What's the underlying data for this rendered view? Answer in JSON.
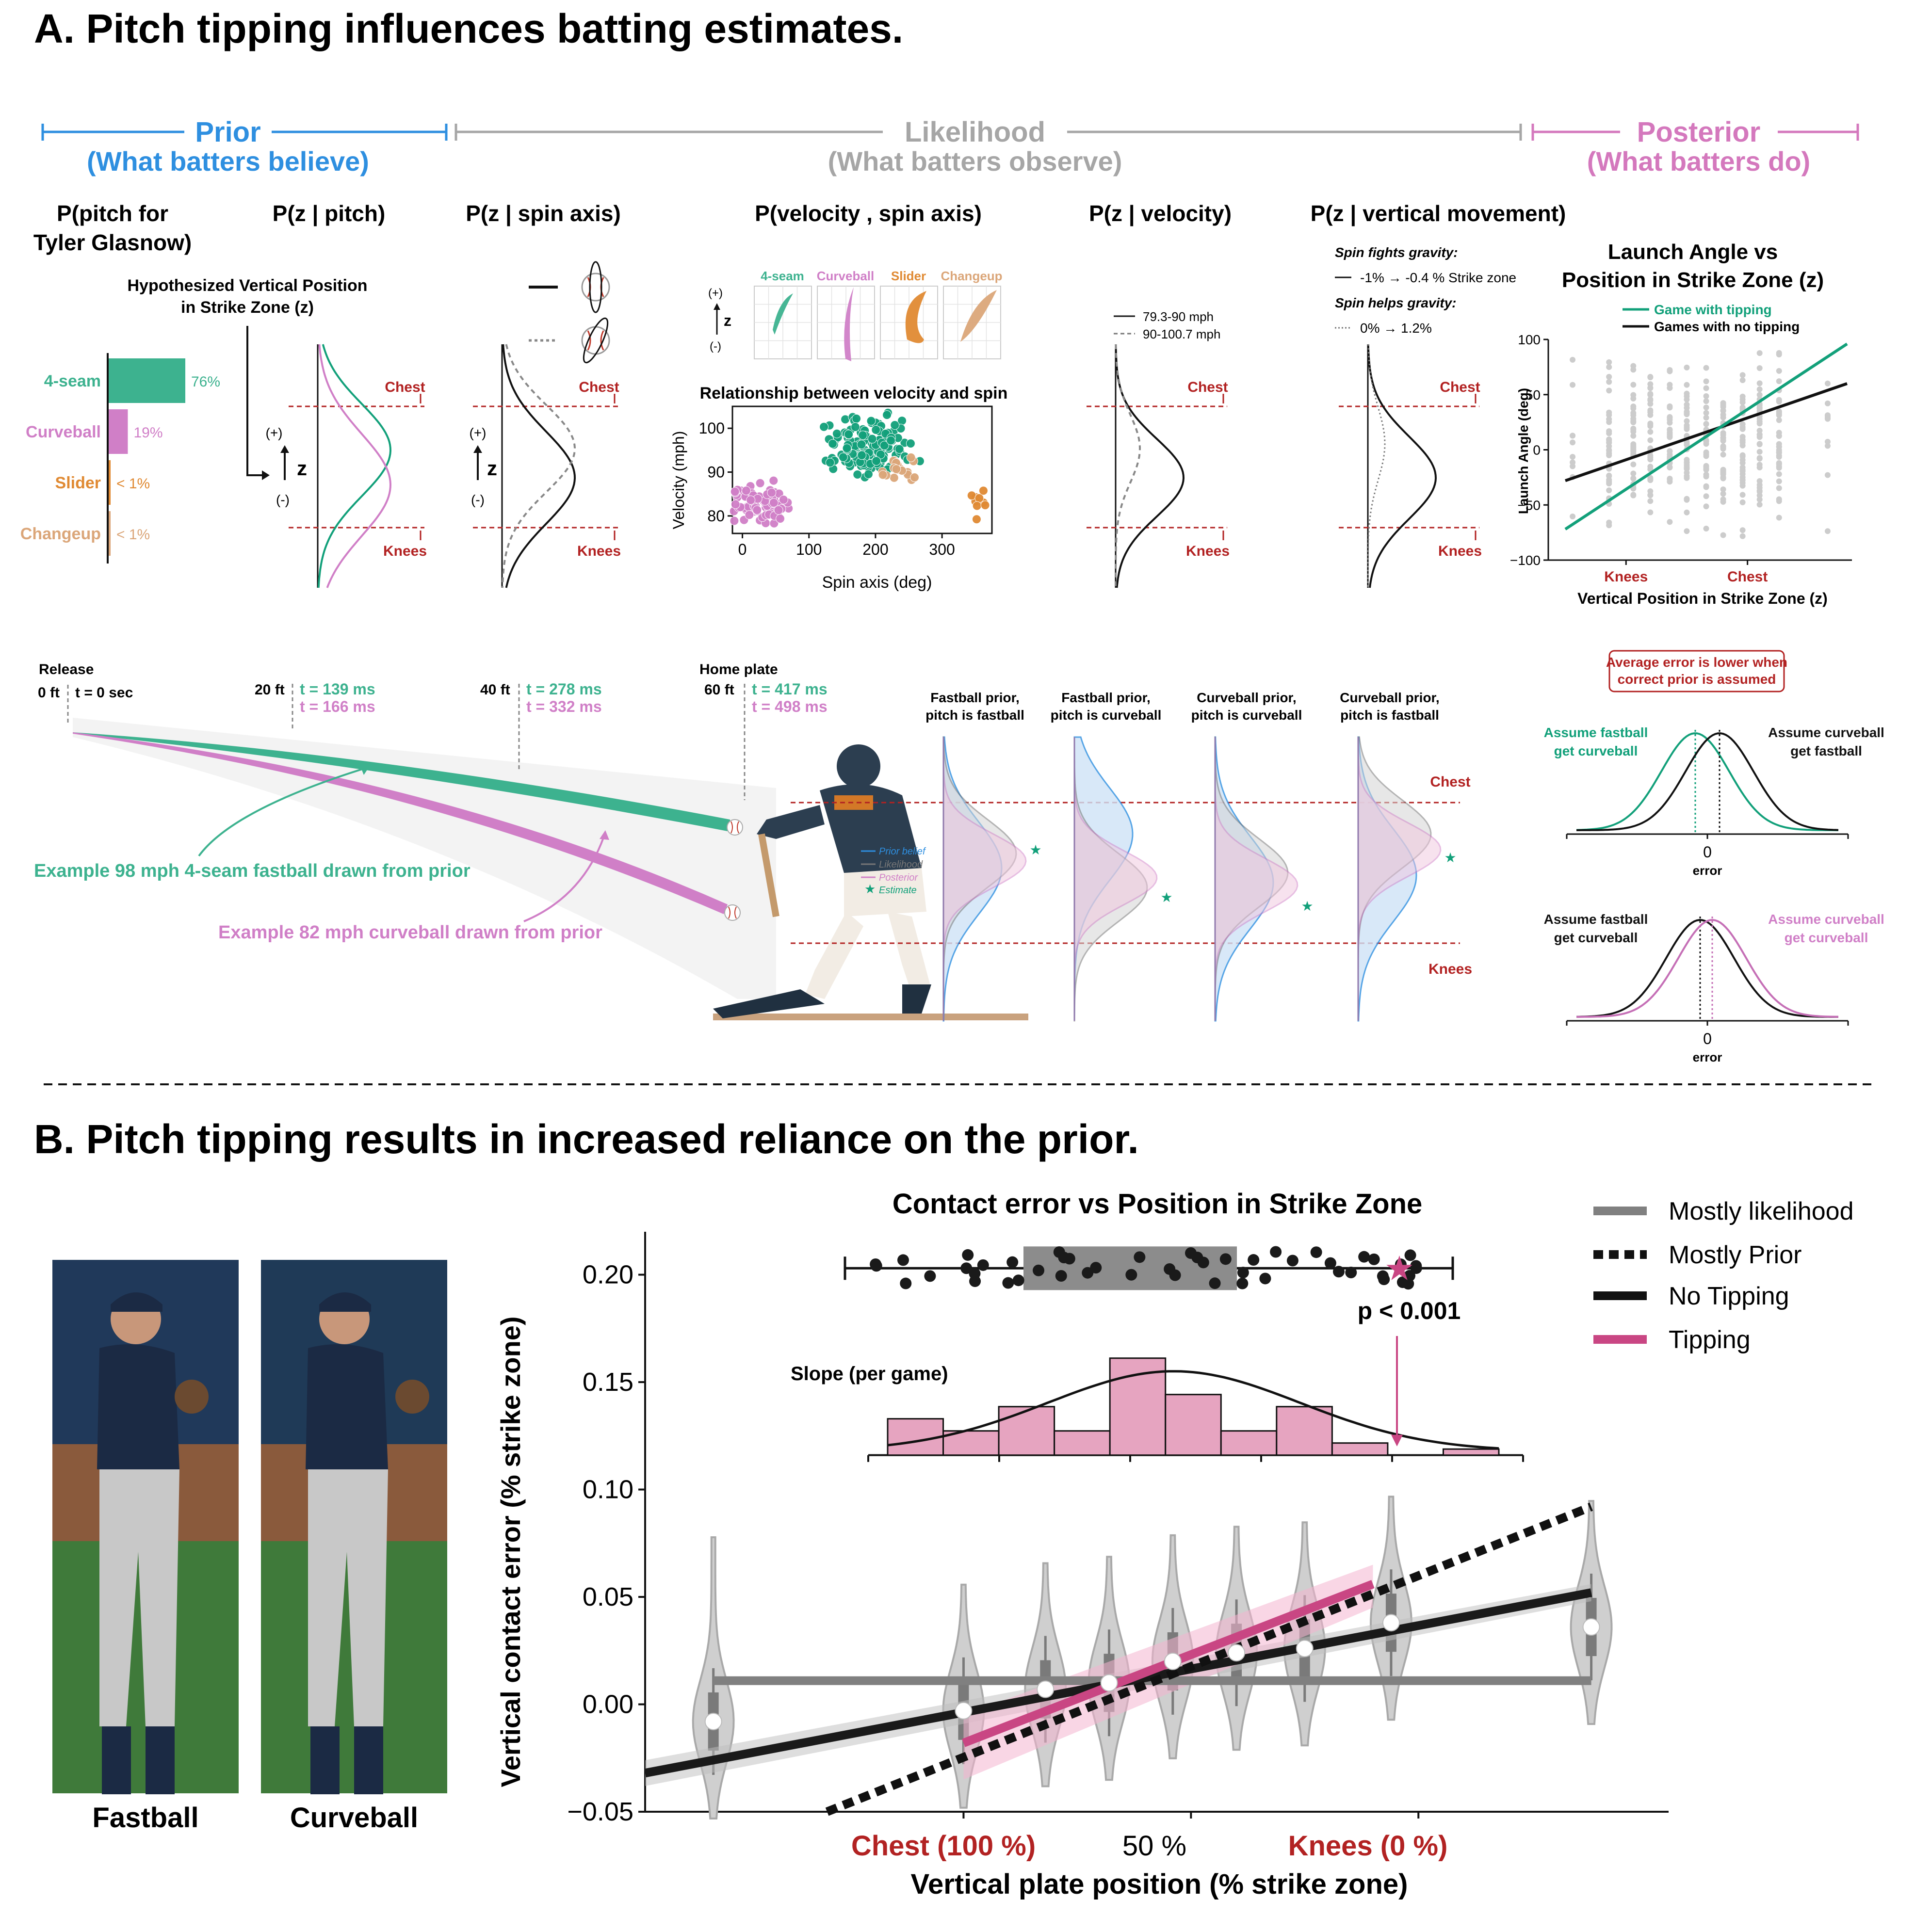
{
  "colors": {
    "prior": "#2e8fe0",
    "likelihood": "#a6a6a6",
    "posterior": "#d478bd",
    "fourseam": "#3db28f",
    "curveball": "#d07fc7",
    "slider": "#e08a33",
    "changeup": "#dba679",
    "knees_chest": "#b22222",
    "tipping": "#c94683",
    "hist_fill": "#e6a4c0",
    "grey": "#c8c8c8"
  },
  "panel_a": {
    "title": "A. Pitch tipping influences batting estimates.",
    "sections": {
      "prior": {
        "title": "Prior",
        "sub": "(What batters believe)"
      },
      "likelihood": {
        "title": "Likelihood",
        "sub": "(What batters observe)"
      },
      "posterior": {
        "title": "Posterior",
        "sub": "(What batters do)"
      }
    },
    "col_titles": {
      "c1_line1": "P(pitch for",
      "c1_line2": "Tyler Glasnow)",
      "c2": "P(z | pitch)",
      "c3": "P(z | spin axis)",
      "c4": "P(velocity , spin axis)",
      "c5": "P(z | velocity)",
      "c6": "P(z | vertical movement)"
    },
    "hypo_line1": "Hypothesized Vertical Position",
    "hypo_line2": "in Strike Zone (z)",
    "axis_z": "z",
    "axis_plus": "(+)",
    "axis_minus": "(-)",
    "chest": "Chest",
    "knees": "Knees",
    "prior_bars": [
      {
        "label": "4-seam",
        "value_text": "76%",
        "value": 76,
        "color": "#3db28f"
      },
      {
        "label": "Curveball",
        "value_text": "19%",
        "value": 19,
        "color": "#d07fc7"
      },
      {
        "label": "Slider",
        "value_text": "< 1%",
        "value": 1,
        "color": "#e08a33"
      },
      {
        "label": "Changeup",
        "value_text": "< 1%",
        "value": 1,
        "color": "#dba679"
      }
    ],
    "pitch_boxes": [
      "4-seam",
      "Curveball",
      "Slider",
      "Changeup"
    ],
    "scatter": {
      "title": "Relationship between velocity and spin",
      "xlabel": "Spin axis (deg)",
      "ylabel": "Velocity (mph)",
      "xticks": [
        "0",
        "100",
        "200",
        "300"
      ],
      "yticks": [
        "80",
        "90",
        "100"
      ]
    },
    "velocity_legend": [
      "79.3-90 mph",
      "90-100.7 mph"
    ],
    "vm_legend": {
      "fights": "Spin fights gravity:",
      "fights_val": "-1% → -0.4 % Strike zone",
      "helps": "Spin helps gravity:",
      "helps_val": "0% → 1.2%"
    },
    "launch": {
      "title_line1": "Launch Angle vs",
      "title_line2": "Position in Strike Zone (z)",
      "legend_tipping": "Game with tipping",
      "legend_notipping": "Games with no tipping",
      "ylabel": "Launch Angle (deg)",
      "xlabel": "Vertical Position in Strike Zone (z)",
      "yticks": [
        "100",
        "50",
        "0",
        "−50",
        "−100"
      ],
      "xticks": [
        "Knees",
        "Chest"
      ]
    },
    "trajectory": {
      "release": "Release",
      "ft0": "0 ft",
      "t0": "t = 0 sec",
      "ft20": "20 ft",
      "t20a": "t = 139 ms",
      "t20b": "t = 166 ms",
      "ft40": "40 ft",
      "t40a": "t = 278 ms",
      "t40b": "t = 332 ms",
      "home": "Home plate",
      "ft60": "60 ft",
      "t60a": "t = 417 ms",
      "t60b": "t = 498 ms",
      "example1": "Example 98 mph 4-seam fastball drawn from prior",
      "example2": "Example 82 mph curveball drawn from prior"
    },
    "combo_titles": [
      [
        "Fastball prior,",
        "pitch is fastball"
      ],
      [
        "Fastball prior,",
        "pitch is curveball"
      ],
      [
        "Curveball prior,",
        "pitch is curveball"
      ],
      [
        "Curveball prior,",
        "pitch is fastball"
      ]
    ],
    "combo_legend": [
      "Prior belief",
      "Likelihood",
      "Posterior",
      "Estimate"
    ],
    "error_box_line1": "Average error is lower when",
    "error_box_line2": "correct prior is assumed",
    "err1_left": [
      "Assume fastball",
      "get curveball"
    ],
    "err1_right": [
      "Assume curveball",
      "get fastball"
    ],
    "err2_left": [
      "Assume fastball",
      "get curveball"
    ],
    "err2_right": [
      "Assume curveball",
      "get curveball"
    ],
    "err_zero": "0",
    "err_label": "error"
  },
  "panel_b": {
    "title": "B. Pitch tipping results in increased reliance on the prior.",
    "photo_labels": [
      "Fastball",
      "Curveball"
    ],
    "chart_title": "Contact error vs Position in Strike Zone",
    "ylabel": "Vertical contact error (% strike zone)",
    "xlabel": "Vertical plate position (% strike zone)",
    "yticks": [
      "0.20",
      "0.15",
      "0.10",
      "0.05",
      "0.00",
      "−0.05"
    ],
    "xticks": [
      "Chest (100 %)",
      "50 %",
      "Knees (0 %)"
    ],
    "legend": [
      "Mostly likelihood",
      "Mostly Prior",
      "No Tipping",
      "Tipping"
    ],
    "slope_label": "Slope (per game)",
    "pvalue": "p < 0.001"
  },
  "chart_data": [
    {
      "type": "bar",
      "title": "P(pitch for Tyler Glasnow)",
      "categories": [
        "4-seam",
        "Curveball",
        "Slider",
        "Changeup"
      ],
      "values": [
        76,
        19,
        1,
        1
      ]
    },
    {
      "type": "scatter",
      "title": "Relationship between velocity and spin",
      "xlabel": "Spin axis (deg)",
      "ylabel": "Velocity (mph)",
      "xlim": [
        -15,
        375
      ],
      "ylim": [
        76,
        105
      ],
      "series": [
        {
          "name": "4-seam",
          "center": [
            195,
            96
          ],
          "spread": [
            30,
            3
          ]
        },
        {
          "name": "Curveball",
          "center": [
            28,
            83
          ],
          "spread": [
            18,
            2.2
          ]
        },
        {
          "name": "Changeup",
          "center": [
            230,
            91
          ],
          "spread": [
            14,
            1.5
          ]
        },
        {
          "name": "Slider",
          "center": [
            355,
            83
          ],
          "spread": [
            5,
            2
          ]
        }
      ]
    },
    {
      "type": "scatter",
      "title": "Launch Angle vs Position in Strike Zone (z)",
      "xlabel": "Vertical Position in Strike Zone (z)",
      "ylabel": "Launch Angle (deg)",
      "ylim": [
        -100,
        100
      ],
      "series": [
        {
          "name": "Game with tipping",
          "line": [
            [
              -0.08,
              -72
            ],
            [
              1.08,
              96
            ]
          ]
        },
        {
          "name": "Games with no tipping",
          "line": [
            [
              -0.08,
              -28
            ],
            [
              1.08,
              60
            ]
          ]
        }
      ]
    },
    {
      "type": "line",
      "title": "Contact error vs Position in Strike Zone",
      "xlabel": "Vertical plate position (% strike zone)",
      "ylabel": "Vertical contact error (% strike zone)",
      "xlim": [
        170,
        -20
      ],
      "ylim": [
        -0.05,
        0.22
      ],
      "violins": [
        {
          "x": 155,
          "median": -0.008
        },
        {
          "x": 100,
          "median": -0.003
        },
        {
          "x": 82,
          "median": 0.007
        },
        {
          "x": 68,
          "median": 0.01
        },
        {
          "x": 54,
          "median": 0.02
        },
        {
          "x": 40,
          "median": 0.024
        },
        {
          "x": 25,
          "median": 0.026
        },
        {
          "x": 6,
          "median": 0.038
        },
        {
          "x": -38,
          "median": 0.036
        }
      ],
      "series": [
        {
          "name": "Mostly likelihood",
          "x": [
            155,
            -38
          ],
          "y": [
            0.011,
            0.011
          ]
        },
        {
          "name": "Mostly Prior",
          "x": [
            130,
            -38
          ],
          "y": [
            -0.05,
            0.092
          ]
        },
        {
          "name": "No Tipping",
          "x": [
            170,
            -38
          ],
          "y": [
            -0.032,
            0.052
          ]
        },
        {
          "name": "Tipping",
          "x": [
            100,
            10
          ],
          "y": [
            -0.018,
            0.056
          ]
        }
      ],
      "hist": {
        "label": "Slope (per game)",
        "counts": [
          3,
          2,
          4,
          2,
          8,
          5,
          2,
          4,
          1,
          0,
          0.5
        ]
      }
    }
  ]
}
